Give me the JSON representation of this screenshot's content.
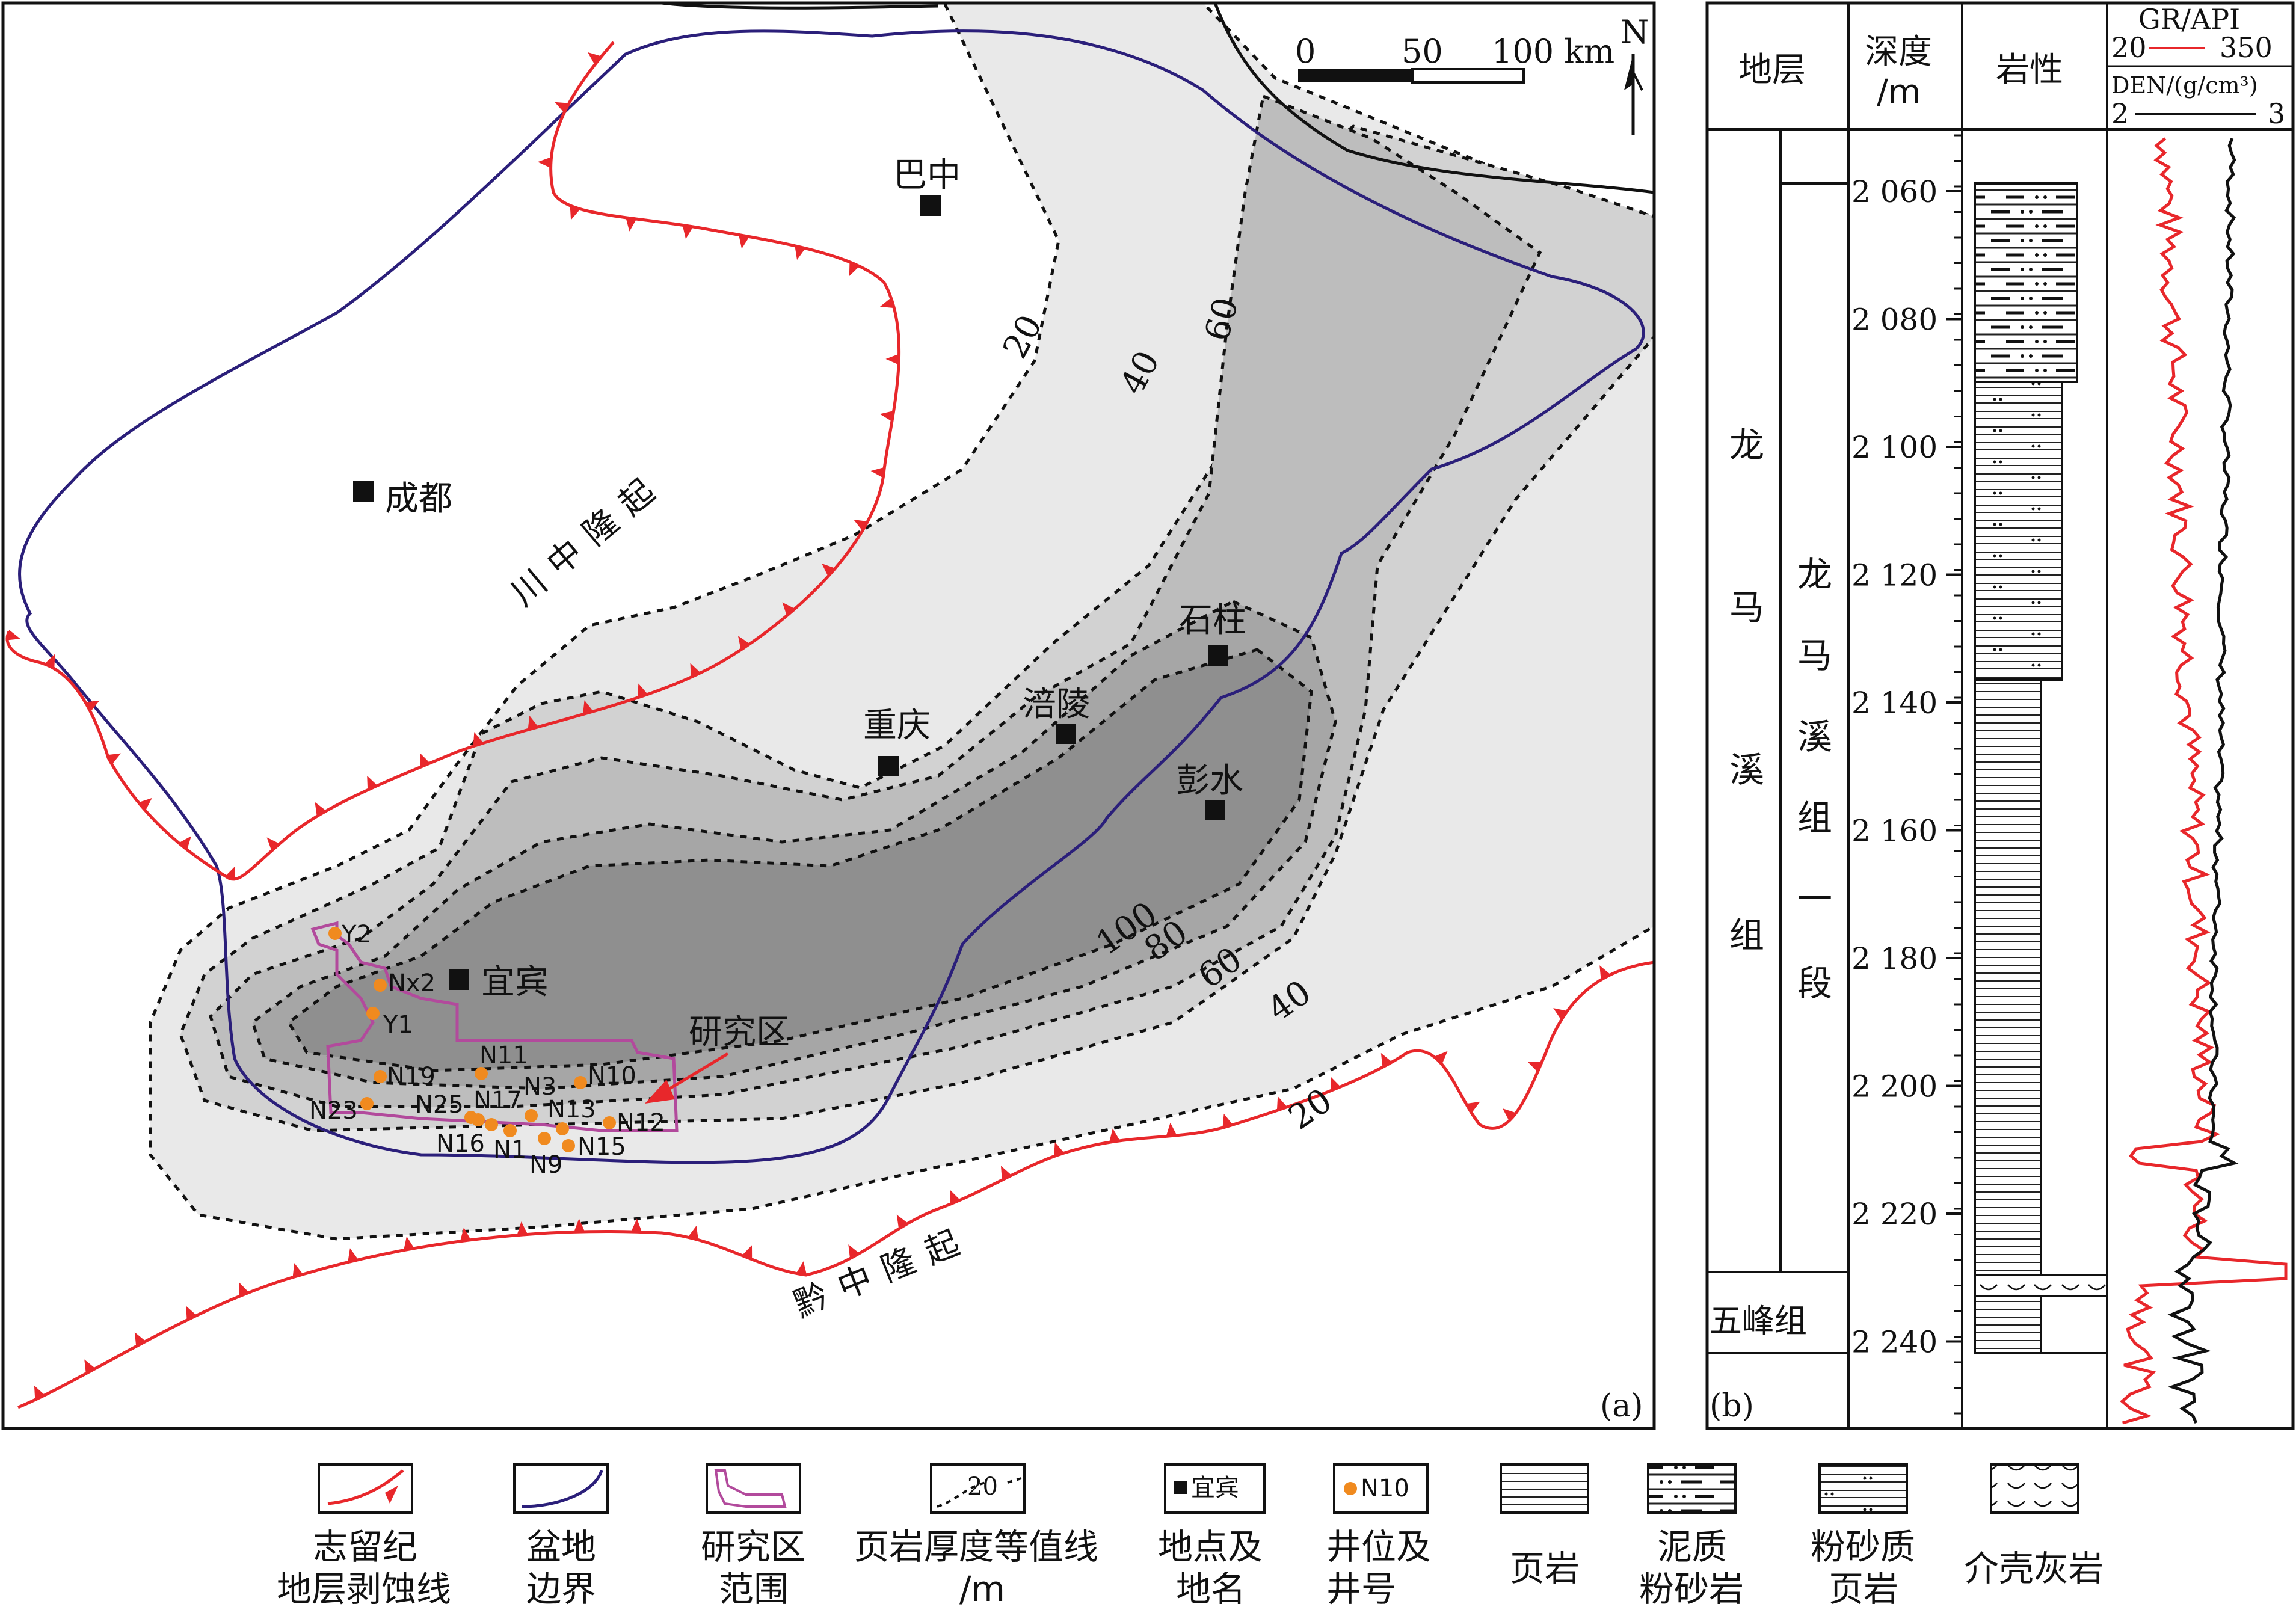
{
  "map": {
    "panel_label": "(a)",
    "scale": {
      "ticks": [
        "0",
        "50",
        "100 km"
      ]
    },
    "north": "N",
    "regions": {
      "chuanzhong": "川中隆起",
      "qianzhong": "黔中隆起"
    },
    "places": [
      {
        "name": "巴中"
      },
      {
        "name": "成都"
      },
      {
        "name": "重庆"
      },
      {
        "name": "涪陵"
      },
      {
        "name": "石柱"
      },
      {
        "name": "彭水"
      },
      {
        "name": "宜宾"
      }
    ],
    "isopach_labels": [
      "20",
      "40",
      "60",
      "20",
      "40",
      "60",
      "80",
      "100"
    ],
    "study_area_label": "研究区",
    "wells": [
      "Y2",
      "Nx2",
      "Y1",
      "N19",
      "N11",
      "N10",
      "N3",
      "N23",
      "N25",
      "N17",
      "N13",
      "N12",
      "N16",
      "N1",
      "N9",
      "N15"
    ],
    "colors": {
      "erosion_line": "#e8272b",
      "basin_boundary": "#2b1f7a",
      "study_area": "#b24a9c",
      "well": "#f08a1f",
      "study_label": "#e8272b"
    }
  },
  "column": {
    "panel_label": "(b)",
    "headers": {
      "strata": "地层",
      "depth": "深度",
      "depth_unit": "/m",
      "lithology": "岩性",
      "gr": "GR/API",
      "gr_min": "20",
      "gr_max": "350",
      "den": "DEN/(g/cm³)",
      "den_min": "2",
      "den_max": "3"
    },
    "formation_main": "龙马溪组",
    "formation_sub": "龙马溪组一段",
    "formation_lower": "五峰组",
    "depth_ticks": [
      "2 060",
      "2 080",
      "2 100",
      "2 120",
      "2 140",
      "2 160",
      "2 180",
      "2 200",
      "2 220",
      "2 240"
    ],
    "colors": {
      "gr": "#e8272b",
      "den": "#111111"
    }
  },
  "legend": {
    "items": [
      {
        "id": "erosion",
        "sample": "",
        "label1": "志留纪",
        "label2": "地层剥蚀线"
      },
      {
        "id": "basin",
        "sample": "",
        "label1": "盆地",
        "label2": "边界"
      },
      {
        "id": "study",
        "sample": "",
        "label1": "研究区",
        "label2": "范围"
      },
      {
        "id": "isopach",
        "sample": "20",
        "label1": "页岩厚度等值线",
        "label2": "/m"
      },
      {
        "id": "place",
        "sample": "宜宾",
        "label1": "地点及",
        "label2": "地名"
      },
      {
        "id": "well",
        "sample": "N10",
        "label1": "井位及",
        "label2": "井号"
      },
      {
        "id": "shale",
        "sample": "",
        "label1": "页岩",
        "label2": ""
      },
      {
        "id": "silt",
        "sample": "",
        "label1": "泥质",
        "label2": "粉砂岩"
      },
      {
        "id": "siltyshale",
        "sample": "",
        "label1": "粉砂质",
        "label2": "页岩"
      },
      {
        "id": "shell",
        "sample": "",
        "label1": "介壳灰岩",
        "label2": ""
      }
    ]
  }
}
